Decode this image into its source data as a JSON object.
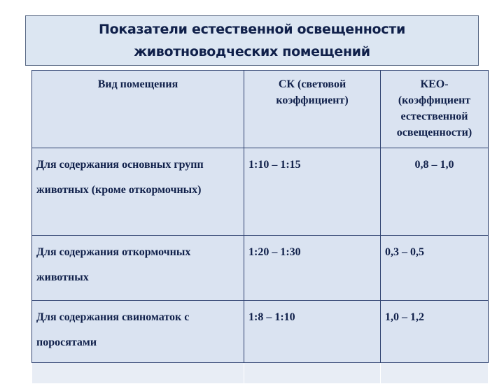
{
  "title": {
    "line1": "Показатели естественной освещенности",
    "line2": "животноводческих помещений"
  },
  "table": {
    "headers": [
      "Вид помещения",
      "СК (световой коэффициент)",
      "КЕО- (коэффициент естественной освещенности)"
    ],
    "rows": [
      [
        "Для содержания основных групп животных (кроме откормочных)",
        "1:10 – 1:15",
        "0,8 – 1,0"
      ],
      [
        "Для содержания откормочных животных",
        "1:20 – 1:30",
        "0,3 – 0,5"
      ],
      [
        "Для содержания свиноматок с поросятами",
        "1:8 – 1:10",
        "1,0 – 1,2"
      ]
    ]
  }
}
